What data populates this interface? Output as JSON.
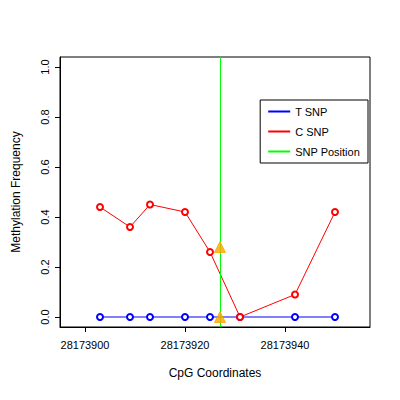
{
  "chart_data": {
    "type": "line",
    "x_label": "CpG Coordinates",
    "y_label": "Methylation Frequency",
    "xlim": [
      28173895,
      28173957
    ],
    "xticks": [
      28173900,
      28173920,
      28173940
    ],
    "ylim": [
      -0.04,
      1.04
    ],
    "yticks": [
      {
        "value": 0,
        "label": "0.0"
      },
      {
        "value": 0.2,
        "label": "0.2"
      },
      {
        "value": 0.4,
        "label": "0.4"
      },
      {
        "value": 0.6,
        "label": "0.6"
      },
      {
        "value": 0.8,
        "label": "0.8"
      },
      {
        "value": 1,
        "label": "1.0"
      }
    ],
    "grid": false,
    "legend": "right",
    "series": [
      {
        "name": "T SNP",
        "type": "line",
        "marker": "circle_open",
        "color": "#0000ff",
        "x": [
          28173903,
          28173909,
          28173913,
          28173920,
          28173925,
          28173931,
          28173942,
          28173950
        ],
        "values": [
          0,
          0,
          0,
          0,
          0,
          0,
          0,
          0
        ]
      },
      {
        "name": "C SNP",
        "type": "line",
        "marker": "circle_open",
        "color": "#ff0000",
        "x": [
          28173903,
          28173909,
          28173913,
          28173920,
          28173925,
          28173931,
          28173942,
          28173950
        ],
        "values": [
          0.44,
          0.36,
          0.45,
          0.42,
          0.26,
          0.0,
          0.09,
          0.42
        ]
      },
      {
        "name": "SNP Position",
        "type": "vline",
        "color": "#00ff00",
        "x": [
          28173927
        ]
      },
      {
        "type": "scatter",
        "marker": "triangle",
        "color": "#ffa500",
        "x": [
          28173927,
          28173927
        ],
        "values": [
          0.28,
          0.0
        ]
      }
    ]
  }
}
